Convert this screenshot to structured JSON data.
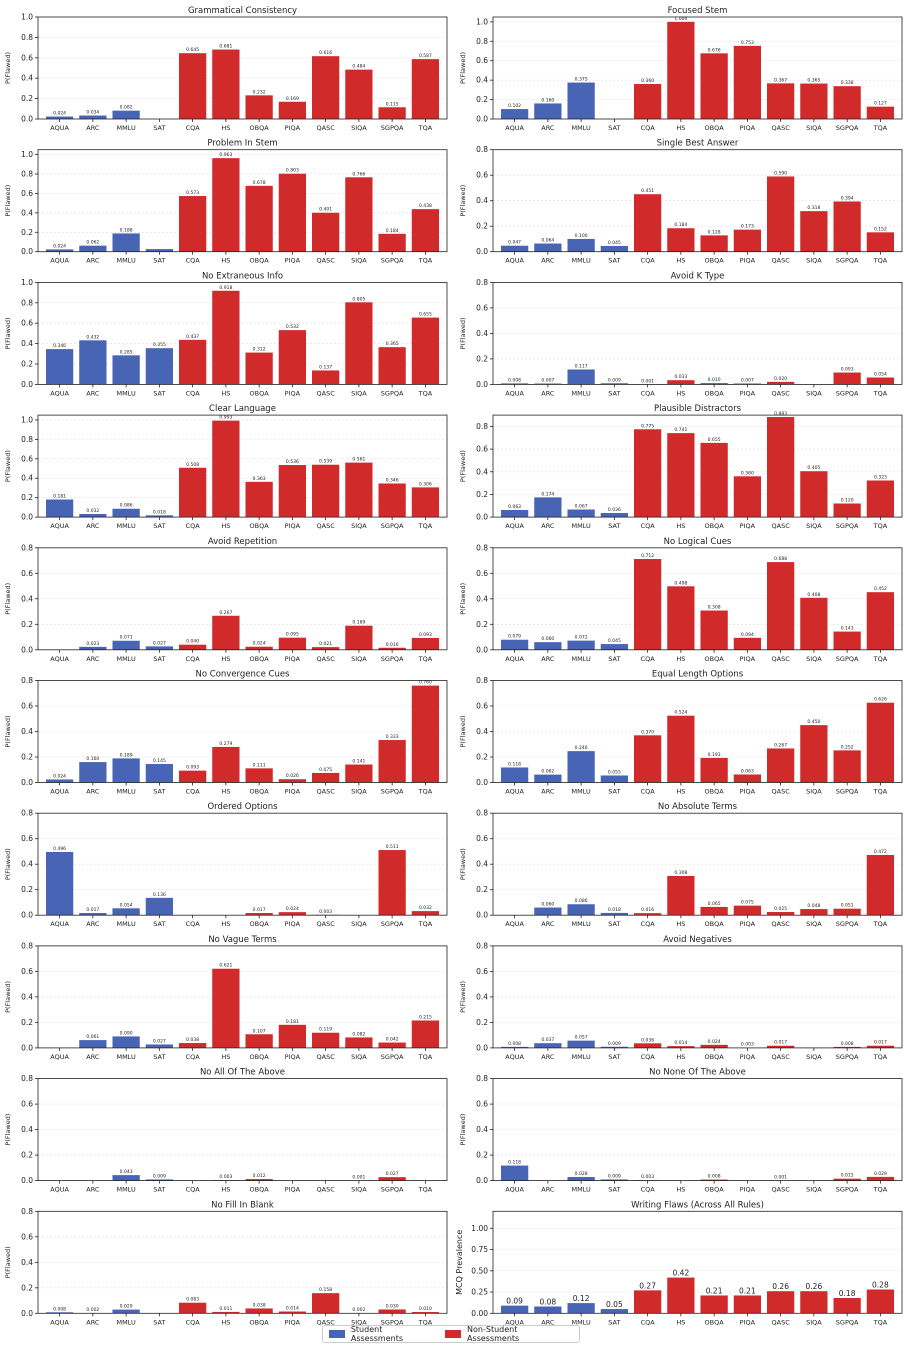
{
  "chart_data": [
    {
      "type": "bar",
      "title": "Grammatical Consistency",
      "ylabel": "P(Flawed)",
      "ylim": [
        0,
        1.0
      ],
      "yticks": [
        0.0,
        0.2,
        0.4,
        0.6,
        0.8,
        1.0
      ],
      "decimals": 1,
      "categories": [
        "AQUA",
        "ARC",
        "MMLU",
        "SAT",
        "CQA",
        "HS",
        "OBQA",
        "PIQA",
        "QASC",
        "SIQA",
        "SGPQA",
        "TQA"
      ],
      "values": [
        0.024,
        0.034,
        0.082,
        null,
        0.645,
        0.681,
        0.232,
        0.169,
        0.616,
        0.484,
        0.115,
        0.587
      ],
      "labels": [
        "0.024",
        "0.034",
        "0.082",
        "",
        "0.645",
        "0.681",
        "0.232",
        "0.169",
        "0.616",
        "0.484",
        "0.115",
        "0.587"
      ]
    },
    {
      "type": "bar",
      "title": "Focused Stem",
      "ylabel": "P(Flawed)",
      "ylim": [
        0,
        1.05
      ],
      "yticks": [
        0.0,
        0.2,
        0.4,
        0.6,
        0.8,
        1.0
      ],
      "decimals": 1,
      "categories": [
        "AQUA",
        "ARC",
        "MMLU",
        "SAT",
        "CQA",
        "HS",
        "OBQA",
        "PIQA",
        "QASC",
        "SIQA",
        "SGPQA",
        "TQA"
      ],
      "values": [
        0.102,
        0.16,
        0.375,
        null,
        0.36,
        1.0,
        0.676,
        0.753,
        0.367,
        0.365,
        0.338,
        0.127
      ],
      "labels": [
        "0.102",
        "0.160",
        "0.375",
        "",
        "0.360",
        "1.000",
        "0.676",
        "0.753",
        "0.367",
        "0.365",
        "0.338",
        "0.127"
      ]
    },
    {
      "type": "bar",
      "title": "Problem In Stem",
      "ylabel": "P(Flawed)",
      "ylim": [
        0,
        1.05
      ],
      "yticks": [
        0.0,
        0.2,
        0.4,
        0.6,
        0.8,
        1.0
      ],
      "decimals": 1,
      "categories": [
        "AQUA",
        "ARC",
        "MMLU",
        "SAT",
        "CQA",
        "HS",
        "OBQA",
        "PIQA",
        "QASC",
        "SIQA",
        "SGPQA",
        "TQA"
      ],
      "values": [
        0.024,
        0.062,
        0.188,
        0.027,
        0.573,
        0.963,
        0.678,
        0.803,
        0.401,
        0.766,
        0.184,
        0.438
      ],
      "labels": [
        "0.024",
        "0.062",
        "0.188",
        "",
        "0.573",
        "0.963",
        "0.678",
        "0.803",
        "0.401",
        "0.766",
        "0.184",
        "0.438"
      ]
    },
    {
      "type": "bar",
      "title": "Single Best Answer",
      "ylabel": "P(Flawed)",
      "ylim": [
        0,
        0.8
      ],
      "yticks": [
        0.0,
        0.2,
        0.4,
        0.6,
        0.8
      ],
      "decimals": 1,
      "categories": [
        "AQUA",
        "ARC",
        "MMLU",
        "SAT",
        "CQA",
        "HS",
        "OBQA",
        "PIQA",
        "QASC",
        "SIQA",
        "SGPQA",
        "TQA"
      ],
      "values": [
        0.047,
        0.064,
        0.1,
        0.045,
        0.451,
        0.184,
        0.128,
        0.173,
        0.59,
        0.318,
        0.394,
        0.152
      ],
      "labels": [
        "0.047",
        "0.064",
        "0.100",
        "0.045",
        "0.451",
        "0.184",
        "0.128",
        "0.173",
        "0.590",
        "0.318",
        "0.394",
        "0.152"
      ]
    },
    {
      "type": "bar",
      "title": "No Extraneous Info",
      "ylabel": "P(Flawed)",
      "ylim": [
        0,
        1.0
      ],
      "yticks": [
        0.0,
        0.2,
        0.4,
        0.6,
        0.8,
        1.0
      ],
      "decimals": 1,
      "categories": [
        "AQUA",
        "ARC",
        "MMLU",
        "SAT",
        "CQA",
        "HS",
        "OBQA",
        "PIQA",
        "QASC",
        "SIQA",
        "SGPQA",
        "TQA"
      ],
      "values": [
        0.346,
        0.432,
        0.285,
        0.355,
        0.437,
        0.918,
        0.312,
        0.532,
        0.137,
        0.805,
        0.365,
        0.655
      ],
      "labels": [
        "0.346",
        "0.432",
        "0.285",
        "0.355",
        "0.437",
        "0.918",
        "0.312",
        "0.532",
        "0.137",
        "0.805",
        "0.365",
        "0.655"
      ]
    },
    {
      "type": "bar",
      "title": "Avoid K Type",
      "ylabel": "P(Flawed)",
      "ylim": [
        0,
        0.8
      ],
      "yticks": [
        0.0,
        0.2,
        0.4,
        0.6,
        0.8
      ],
      "decimals": 1,
      "categories": [
        "AQUA",
        "ARC",
        "MMLU",
        "SAT",
        "CQA",
        "HS",
        "OBQA",
        "PIQA",
        "QASC",
        "SIQA",
        "SGPQA",
        "TQA"
      ],
      "values": [
        0.008,
        0.007,
        0.117,
        0.009,
        0.001,
        0.033,
        0.01,
        0.007,
        0.02,
        null,
        0.093,
        0.054
      ],
      "labels": [
        "0.008",
        "0.007",
        "0.117",
        "0.009",
        "0.001",
        "0.033",
        "0.010",
        "0.007",
        "0.020",
        "",
        "0.093",
        "0.054"
      ]
    },
    {
      "type": "bar",
      "title": "Clear Language",
      "ylabel": "P(Flawed)",
      "ylim": [
        0,
        1.05
      ],
      "yticks": [
        0.0,
        0.2,
        0.4,
        0.6,
        0.8,
        1.0
      ],
      "decimals": 1,
      "categories": [
        "AQUA",
        "ARC",
        "MMLU",
        "SAT",
        "CQA",
        "HS",
        "OBQA",
        "PIQA",
        "QASC",
        "SIQA",
        "SGPQA",
        "TQA"
      ],
      "values": [
        0.181,
        0.032,
        0.086,
        0.018,
        0.508,
        0.993,
        0.363,
        0.536,
        0.539,
        0.561,
        0.346,
        0.306
      ],
      "labels": [
        "0.181",
        "0.032",
        "0.086",
        "0.018",
        "0.508",
        "0.993",
        "0.363",
        "0.536",
        "0.539",
        "0.561",
        "0.346",
        "0.306"
      ]
    },
    {
      "type": "bar",
      "title": "Plausible Distractors",
      "ylabel": "P(Flawed)",
      "ylim": [
        0,
        0.9
      ],
      "yticks": [
        0.0,
        0.2,
        0.4,
        0.6,
        0.8
      ],
      "decimals": 1,
      "categories": [
        "AQUA",
        "ARC",
        "MMLU",
        "SAT",
        "CQA",
        "HS",
        "OBQA",
        "PIQA",
        "QASC",
        "SIQA",
        "SGPQA",
        "TQA"
      ],
      "values": [
        0.063,
        0.174,
        0.067,
        0.036,
        0.775,
        0.741,
        0.655,
        0.36,
        0.883,
        0.405,
        0.12,
        0.323
      ],
      "labels": [
        "0.063",
        "0.174",
        "0.067",
        "0.036",
        "0.775",
        "0.741",
        "0.655",
        "0.360",
        "0.883",
        "0.405",
        "0.120",
        "0.323"
      ]
    },
    {
      "type": "bar",
      "title": "Avoid Repetition",
      "ylabel": "P(Flawed)",
      "ylim": [
        0,
        0.8
      ],
      "yticks": [
        0.0,
        0.2,
        0.4,
        0.6,
        0.8
      ],
      "decimals": 1,
      "categories": [
        "AQUA",
        "ARC",
        "MMLU",
        "SAT",
        "CQA",
        "HS",
        "OBQA",
        "PIQA",
        "QASC",
        "SIQA",
        "SGPQA",
        "TQA"
      ],
      "values": [
        null,
        0.023,
        0.071,
        0.027,
        0.04,
        0.267,
        0.024,
        0.095,
        0.021,
        0.189,
        0.016,
        0.093
      ],
      "labels": [
        "",
        "0.023",
        "0.071",
        "0.027",
        "0.040",
        "0.267",
        "0.024",
        "0.095",
        "0.021",
        "0.189",
        "0.016",
        "0.093"
      ]
    },
    {
      "type": "bar",
      "title": "No Logical Cues",
      "ylabel": "P(Flawed)",
      "ylim": [
        0,
        0.8
      ],
      "yticks": [
        0.0,
        0.2,
        0.4,
        0.6,
        0.8
      ],
      "decimals": 1,
      "categories": [
        "AQUA",
        "ARC",
        "MMLU",
        "SAT",
        "CQA",
        "HS",
        "OBQA",
        "PIQA",
        "QASC",
        "SIQA",
        "SGPQA",
        "TQA"
      ],
      "values": [
        0.079,
        0.06,
        0.072,
        0.045,
        0.712,
        0.498,
        0.308,
        0.094,
        0.688,
        0.408,
        0.143,
        0.452
      ],
      "labels": [
        "0.079",
        "0.060",
        "0.072",
        "0.045",
        "0.712",
        "0.498",
        "0.308",
        "0.094",
        "0.688",
        "0.408",
        "0.143",
        "0.452"
      ]
    },
    {
      "type": "bar",
      "title": "No Convergence Cues",
      "ylabel": "P(Flawed)",
      "ylim": [
        0,
        0.8
      ],
      "yticks": [
        0.0,
        0.2,
        0.4,
        0.6,
        0.8
      ],
      "decimals": 1,
      "categories": [
        "AQUA",
        "ARC",
        "MMLU",
        "SAT",
        "CQA",
        "HS",
        "OBQA",
        "PIQA",
        "QASC",
        "SIQA",
        "SGPQA",
        "TQA"
      ],
      "values": [
        0.024,
        0.16,
        0.189,
        0.145,
        0.093,
        0.279,
        0.111,
        0.026,
        0.075,
        0.141,
        0.333,
        0.76
      ],
      "labels": [
        "0.024",
        "0.160",
        "0.189",
        "0.145",
        "0.093",
        "0.279",
        "0.111",
        "0.026",
        "0.075",
        "0.141",
        "0.333",
        "0.760"
      ]
    },
    {
      "type": "bar",
      "title": "Equal Length Options",
      "ylabel": "P(Flawed)",
      "ylim": [
        0,
        0.8
      ],
      "yticks": [
        0.0,
        0.2,
        0.4,
        0.6,
        0.8
      ],
      "decimals": 1,
      "categories": [
        "AQUA",
        "ARC",
        "MMLU",
        "SAT",
        "CQA",
        "HS",
        "OBQA",
        "PIQA",
        "QASC",
        "SIQA",
        "SGPQA",
        "TQA"
      ],
      "values": [
        0.118,
        0.062,
        0.246,
        0.055,
        0.37,
        0.524,
        0.193,
        0.063,
        0.267,
        0.45,
        0.252,
        0.626
      ],
      "labels": [
        "0.118",
        "0.062",
        "0.246",
        "0.055",
        "0.370",
        "0.524",
        "0.193",
        "0.063",
        "0.267",
        "0.450",
        "0.252",
        "0.626"
      ]
    },
    {
      "type": "bar",
      "title": "Ordered Options",
      "ylabel": "P(Flawed)",
      "ylim": [
        0,
        0.8
      ],
      "yticks": [
        0.0,
        0.2,
        0.4,
        0.6,
        0.8
      ],
      "decimals": 1,
      "categories": [
        "AQUA",
        "ARC",
        "MMLU",
        "SAT",
        "CQA",
        "HS",
        "OBQA",
        "PIQA",
        "QASC",
        "SIQA",
        "SGPQA",
        "TQA"
      ],
      "values": [
        0.496,
        0.017,
        0.054,
        0.136,
        null,
        null,
        0.017,
        0.024,
        0.003,
        null,
        0.511,
        0.032
      ],
      "labels": [
        "0.496",
        "0.017",
        "0.054",
        "0.136",
        "",
        "",
        "0.017",
        "0.024",
        "0.003",
        "",
        "0.511",
        "0.032"
      ]
    },
    {
      "type": "bar",
      "title": "No Absolute Terms",
      "ylabel": "P(Flawed)",
      "ylim": [
        0,
        0.8
      ],
      "yticks": [
        0.0,
        0.2,
        0.4,
        0.6,
        0.8
      ],
      "decimals": 1,
      "categories": [
        "AQUA",
        "ARC",
        "MMLU",
        "SAT",
        "CQA",
        "HS",
        "OBQA",
        "PIQA",
        "QASC",
        "SIQA",
        "SGPQA",
        "TQA"
      ],
      "values": [
        null,
        0.06,
        0.086,
        0.018,
        0.016,
        0.308,
        0.065,
        0.075,
        0.025,
        0.048,
        0.051,
        0.472
      ],
      "labels": [
        "",
        "0.060",
        "0.086",
        "0.018",
        "0.016",
        "0.308",
        "0.065",
        "0.075",
        "0.025",
        "0.048",
        "0.051",
        "0.472"
      ]
    },
    {
      "type": "bar",
      "title": "No Vague Terms",
      "ylabel": "P(Flawed)",
      "ylim": [
        0,
        0.8
      ],
      "yticks": [
        0.0,
        0.2,
        0.4,
        0.6,
        0.8
      ],
      "decimals": 1,
      "categories": [
        "AQUA",
        "ARC",
        "MMLU",
        "SAT",
        "CQA",
        "HS",
        "OBQA",
        "PIQA",
        "QASC",
        "SIQA",
        "SGPQA",
        "TQA"
      ],
      "values": [
        0.003,
        0.061,
        0.09,
        0.027,
        0.038,
        0.621,
        0.107,
        0.181,
        0.119,
        0.082,
        0.042,
        0.215
      ],
      "labels": [
        "",
        "0.061",
        "0.090",
        "0.027",
        "0.038",
        "0.621",
        "0.107",
        "0.181",
        "0.119",
        "0.082",
        "0.042",
        "0.215"
      ]
    },
    {
      "type": "bar",
      "title": "Avoid Negatives",
      "ylabel": "P(Flawed)",
      "ylim": [
        0,
        0.8
      ],
      "yticks": [
        0.0,
        0.2,
        0.4,
        0.6,
        0.8
      ],
      "decimals": 1,
      "categories": [
        "AQUA",
        "ARC",
        "MMLU",
        "SAT",
        "CQA",
        "HS",
        "OBQA",
        "PIQA",
        "QASC",
        "SIQA",
        "SGPQA",
        "TQA"
      ],
      "values": [
        0.008,
        0.037,
        0.057,
        0.009,
        0.036,
        0.014,
        0.024,
        0.003,
        0.017,
        null,
        0.008,
        0.017
      ],
      "labels": [
        "0.008",
        "0.037",
        "0.057",
        "0.009",
        "0.036",
        "0.014",
        "0.024",
        "0.003",
        "0.017",
        "",
        "0.008",
        "0.017"
      ]
    },
    {
      "type": "bar",
      "title": "No All Of The Above",
      "ylabel": "P(Flawed)",
      "ylim": [
        0,
        0.8
      ],
      "yticks": [
        0.0,
        0.2,
        0.4,
        0.6,
        0.8
      ],
      "decimals": 1,
      "categories": [
        "AQUA",
        "ARC",
        "MMLU",
        "SAT",
        "CQA",
        "HS",
        "OBQA",
        "PIQA",
        "QASC",
        "SIQA",
        "SGPQA",
        "TQA"
      ],
      "values": [
        null,
        null,
        0.043,
        0.009,
        null,
        0.003,
        0.012,
        null,
        null,
        0.001,
        0.027,
        null
      ],
      "labels": [
        "",
        "",
        "0.043",
        "0.009",
        "",
        "0.003",
        "0.012",
        "",
        "",
        "0.001",
        "0.027",
        ""
      ]
    },
    {
      "type": "bar",
      "title": "No None Of The Above",
      "ylabel": "P(Flawed)",
      "ylim": [
        0,
        0.8
      ],
      "yticks": [
        0.0,
        0.2,
        0.4,
        0.6,
        0.8
      ],
      "decimals": 1,
      "categories": [
        "AQUA",
        "ARC",
        "MMLU",
        "SAT",
        "CQA",
        "HS",
        "OBQA",
        "PIQA",
        "QASC",
        "SIQA",
        "SGPQA",
        "TQA"
      ],
      "values": [
        0.118,
        null,
        0.028,
        0.009,
        0.003,
        null,
        0.008,
        null,
        0.001,
        null,
        0.015,
        0.029
      ],
      "labels": [
        "0.118",
        "",
        "0.028",
        "0.009",
        "0.003",
        "",
        "0.008",
        "",
        "0.001",
        "",
        "0.015",
        "0.029"
      ]
    },
    {
      "type": "bar",
      "title": "No Fill In Blank",
      "ylabel": "P(Flawed)",
      "ylim": [
        0,
        0.8
      ],
      "yticks": [
        0.0,
        0.2,
        0.4,
        0.6,
        0.8
      ],
      "decimals": 1,
      "categories": [
        "AQUA",
        "ARC",
        "MMLU",
        "SAT",
        "CQA",
        "HS",
        "OBQA",
        "PIQA",
        "QASC",
        "SIQA",
        "SGPQA",
        "TQA"
      ],
      "values": [
        0.008,
        0.002,
        0.029,
        null,
        0.083,
        0.011,
        0.038,
        0.014,
        0.158,
        0.002,
        0.03,
        0.01
      ],
      "labels": [
        "0.008",
        "0.002",
        "0.029",
        "",
        "0.083",
        "0.011",
        "0.038",
        "0.014",
        "0.158",
        "0.002",
        "0.030",
        "0.010"
      ]
    },
    {
      "type": "bar",
      "title": "Writing Flaws (Across All Rules)",
      "ylabel": "MCQ Prevalence",
      "ylim": [
        0,
        1.2
      ],
      "yticks": [
        0.0,
        0.25,
        0.5,
        0.75,
        1.0
      ],
      "decimals": 2,
      "big_labels": true,
      "categories": [
        "AQUA",
        "ARC",
        "MMLU",
        "SAT",
        "CQA",
        "HS",
        "OBQA",
        "PIQA",
        "QASC",
        "SIQA",
        "SGPQA",
        "TQA"
      ],
      "values": [
        0.09,
        0.08,
        0.12,
        0.05,
        0.27,
        0.42,
        0.21,
        0.21,
        0.26,
        0.26,
        0.18,
        0.28
      ],
      "labels": [
        "0.09",
        "0.08",
        "0.12",
        "0.05",
        "0.27",
        "0.42",
        "0.21",
        "0.21",
        "0.26",
        "0.26",
        "0.18",
        "0.28"
      ]
    }
  ],
  "groups": {
    "student_count": 4
  },
  "colors": {
    "student": "#4864b4",
    "non_student": "#d12a2a",
    "grid": "#dddddd"
  },
  "legend": {
    "student": "Student Assessments",
    "non_student": "Non-Student Assessments"
  }
}
